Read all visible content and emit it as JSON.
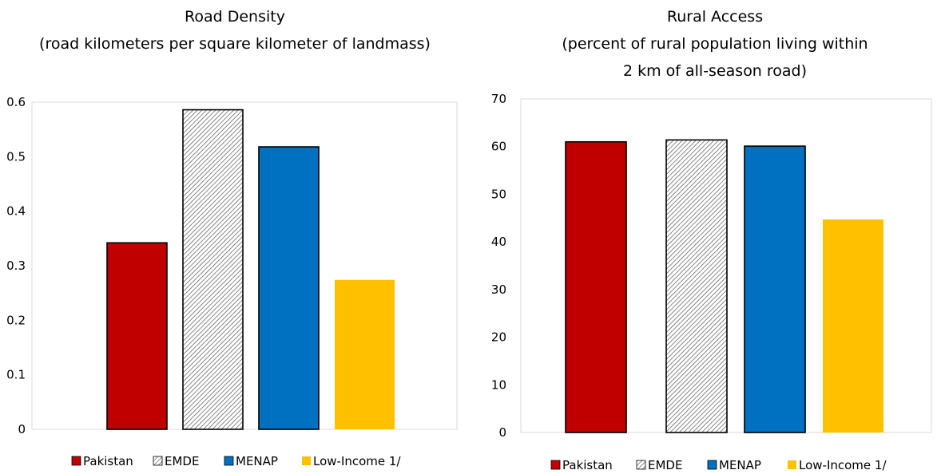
{
  "chart_data": [
    {
      "type": "bar",
      "title": "Road Density",
      "subtitle": "(road kilometers per square kilometer of landmass)",
      "categories": [
        "Pakistan",
        "EMDE",
        "MENAP",
        "Low-Income 1/"
      ],
      "values": [
        0.342,
        0.586,
        0.518,
        0.274
      ],
      "ylim": [
        0,
        0.6
      ],
      "yticks": [
        "0",
        "0.1",
        "0.2",
        "0.3",
        "0.4",
        "0.5",
        "0.6"
      ],
      "grid": false,
      "legend_position": "bottom",
      "colors": [
        "#C00000",
        "hatch",
        "#0070C0",
        "#FFC000"
      ]
    },
    {
      "type": "bar",
      "title": "Rural Access",
      "subtitle_lines": [
        "(percent of rural population living within",
        "2 km of all-season road)"
      ],
      "categories": [
        "Pakistan",
        "EMDE",
        "MENAP",
        "Low-Income 1/"
      ],
      "values": [
        61.0,
        61.4,
        60.1,
        44.7
      ],
      "ylim": [
        0,
        70
      ],
      "yticks": [
        "0",
        "10",
        "20",
        "30",
        "40",
        "50",
        "60",
        "70"
      ],
      "grid": false,
      "legend_position": "bottom",
      "colors": [
        "#C00000",
        "hatch",
        "#0070C0",
        "#FFC000"
      ]
    }
  ]
}
